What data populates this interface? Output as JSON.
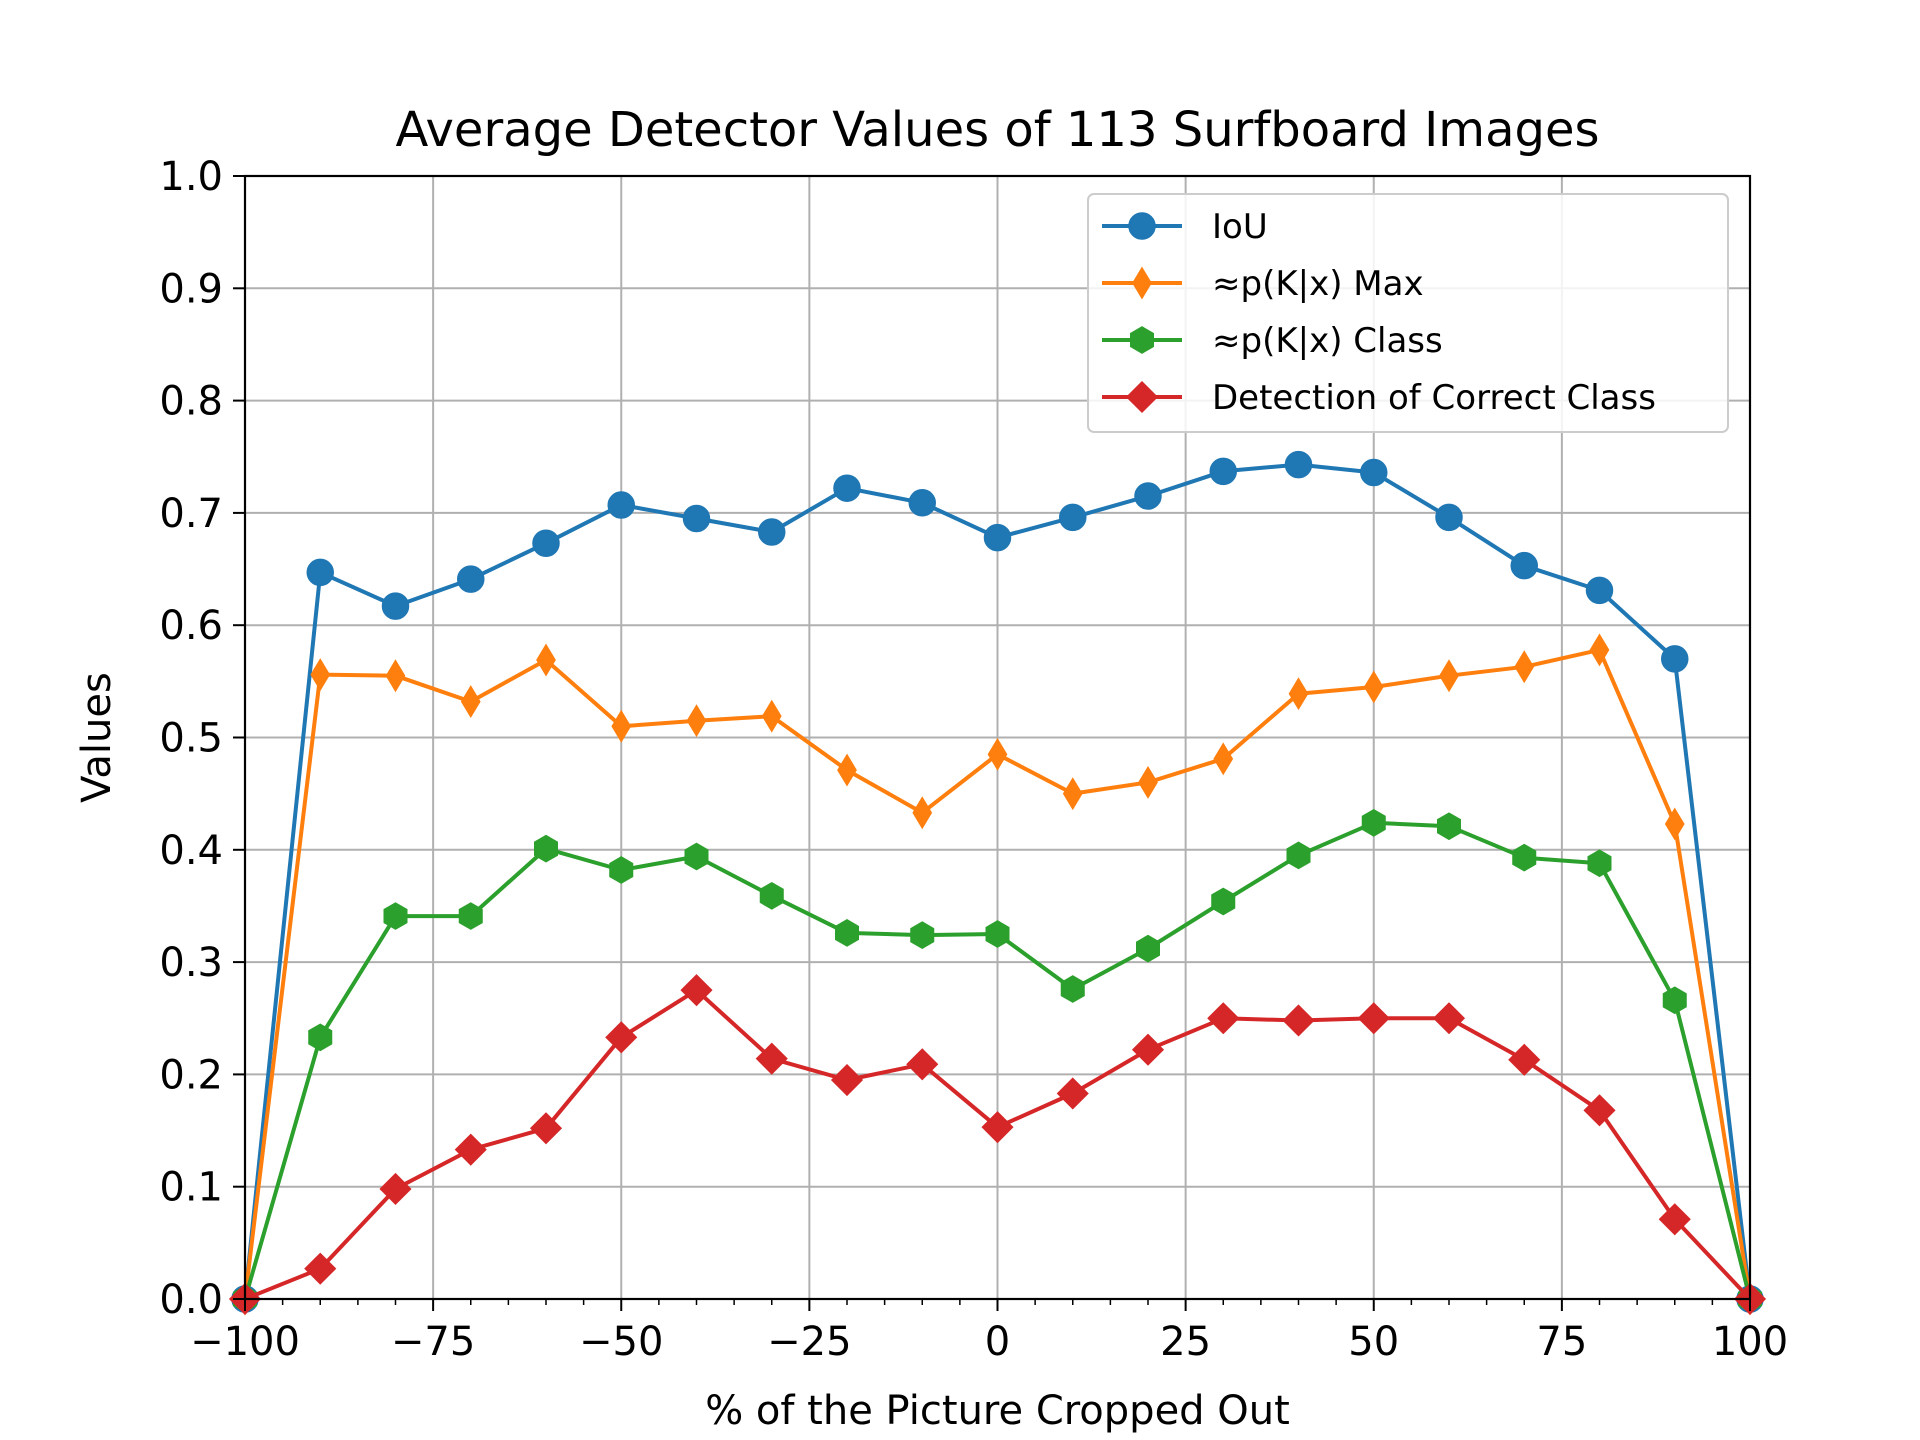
{
  "chart_data": {
    "type": "line",
    "title": "Average Detector Values of 113 Surfboard Images",
    "xlabel": "% of the Picture Cropped Out",
    "ylabel": "Values",
    "xlim": [
      -100,
      100
    ],
    "ylim": [
      0,
      1.0
    ],
    "grid": true,
    "legend_position": "top-right",
    "x_ticks": [
      "−100",
      "−75",
      "−50",
      "−25",
      "0",
      "25",
      "50",
      "75",
      "100"
    ],
    "x_tick_values": [
      -100,
      -75,
      -50,
      -25,
      0,
      25,
      50,
      75,
      100
    ],
    "y_ticks": [
      "0.0",
      "0.1",
      "0.2",
      "0.3",
      "0.4",
      "0.5",
      "0.6",
      "0.7",
      "0.8",
      "0.9",
      "1.0"
    ],
    "y_tick_values": [
      0,
      0.1,
      0.2,
      0.3,
      0.4,
      0.5,
      0.6,
      0.7,
      0.8,
      0.9,
      1.0
    ],
    "x": [
      -100,
      -90,
      -80,
      -70,
      -60,
      -50,
      -40,
      -30,
      -20,
      -10,
      0,
      10,
      20,
      30,
      40,
      50,
      60,
      70,
      80,
      90,
      100
    ],
    "series": [
      {
        "name": "IoU",
        "color": "#1f77b4",
        "marker": "circle",
        "values": [
          0.0,
          0.647,
          0.617,
          0.641,
          0.673,
          0.707,
          0.695,
          0.683,
          0.722,
          0.709,
          0.678,
          0.696,
          0.715,
          0.737,
          0.743,
          0.736,
          0.696,
          0.653,
          0.631,
          0.57,
          0.0
        ]
      },
      {
        "name": "≈p(K|x) Max",
        "color": "#ff7f0e",
        "marker": "thin-diamond",
        "values": [
          0.0,
          0.556,
          0.555,
          0.532,
          0.569,
          0.51,
          0.515,
          0.519,
          0.471,
          0.433,
          0.485,
          0.45,
          0.46,
          0.481,
          0.539,
          0.545,
          0.555,
          0.563,
          0.578,
          0.423,
          0.0
        ]
      },
      {
        "name": "≈p(K|x) Class",
        "color": "#2ca02c",
        "marker": "hexagon",
        "values": [
          0.0,
          0.233,
          0.341,
          0.341,
          0.401,
          0.382,
          0.394,
          0.359,
          0.326,
          0.324,
          0.325,
          0.276,
          0.312,
          0.354,
          0.395,
          0.424,
          0.421,
          0.393,
          0.388,
          0.266,
          0.0
        ]
      },
      {
        "name": "Detection of Correct Class",
        "color": "#d62728",
        "marker": "diamond",
        "values": [
          0.0,
          0.027,
          0.098,
          0.133,
          0.152,
          0.233,
          0.275,
          0.214,
          0.195,
          0.209,
          0.153,
          0.183,
          0.222,
          0.25,
          0.248,
          0.25,
          0.25,
          0.213,
          0.168,
          0.071,
          0.0
        ]
      }
    ]
  }
}
